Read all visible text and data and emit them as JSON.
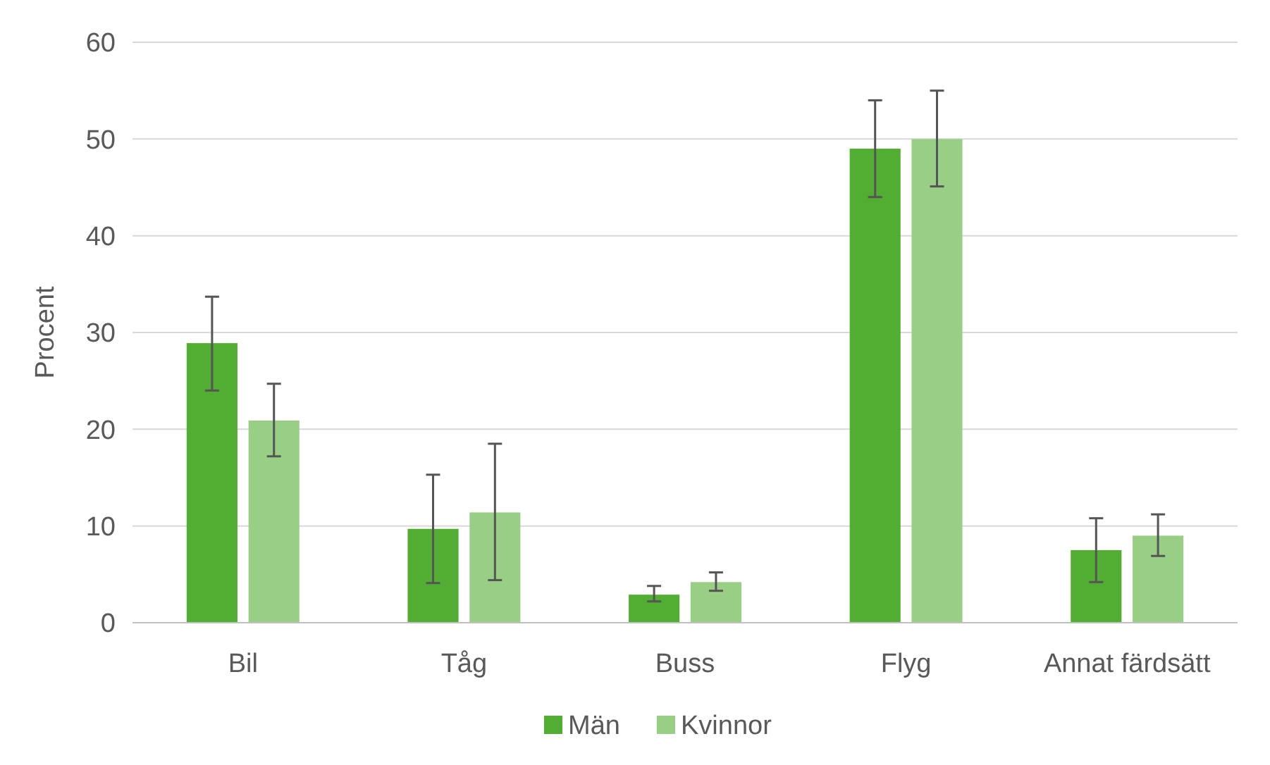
{
  "chart_data": {
    "type": "bar",
    "ylabel": "Procent",
    "categories": [
      "Bil",
      "Tåg",
      "Buss",
      "Flyg",
      "Annat färdsätt"
    ],
    "series": [
      {
        "name": "Män",
        "color": "#52ae32",
        "values": [
          28.9,
          9.7,
          2.9,
          49,
          7.5
        ],
        "errors": [
          [
            24,
            33.7
          ],
          [
            4.1,
            15.3
          ],
          [
            2.2,
            3.8
          ],
          [
            44,
            54
          ],
          [
            4.2,
            10.8
          ]
        ]
      },
      {
        "name": "Kvinnor",
        "color": "#99cf85",
        "values": [
          20.9,
          11.4,
          4.2,
          50,
          9
        ],
        "errors": [
          [
            17.2,
            24.7
          ],
          [
            4.4,
            18.5
          ],
          [
            3.3,
            5.2
          ],
          [
            45.1,
            55
          ],
          [
            6.9,
            11.2
          ]
        ]
      }
    ],
    "ylim": [
      0,
      60
    ],
    "yticks": [
      0,
      10,
      20,
      30,
      40,
      50,
      60
    ],
    "grid": "y",
    "legend": "bottom"
  }
}
